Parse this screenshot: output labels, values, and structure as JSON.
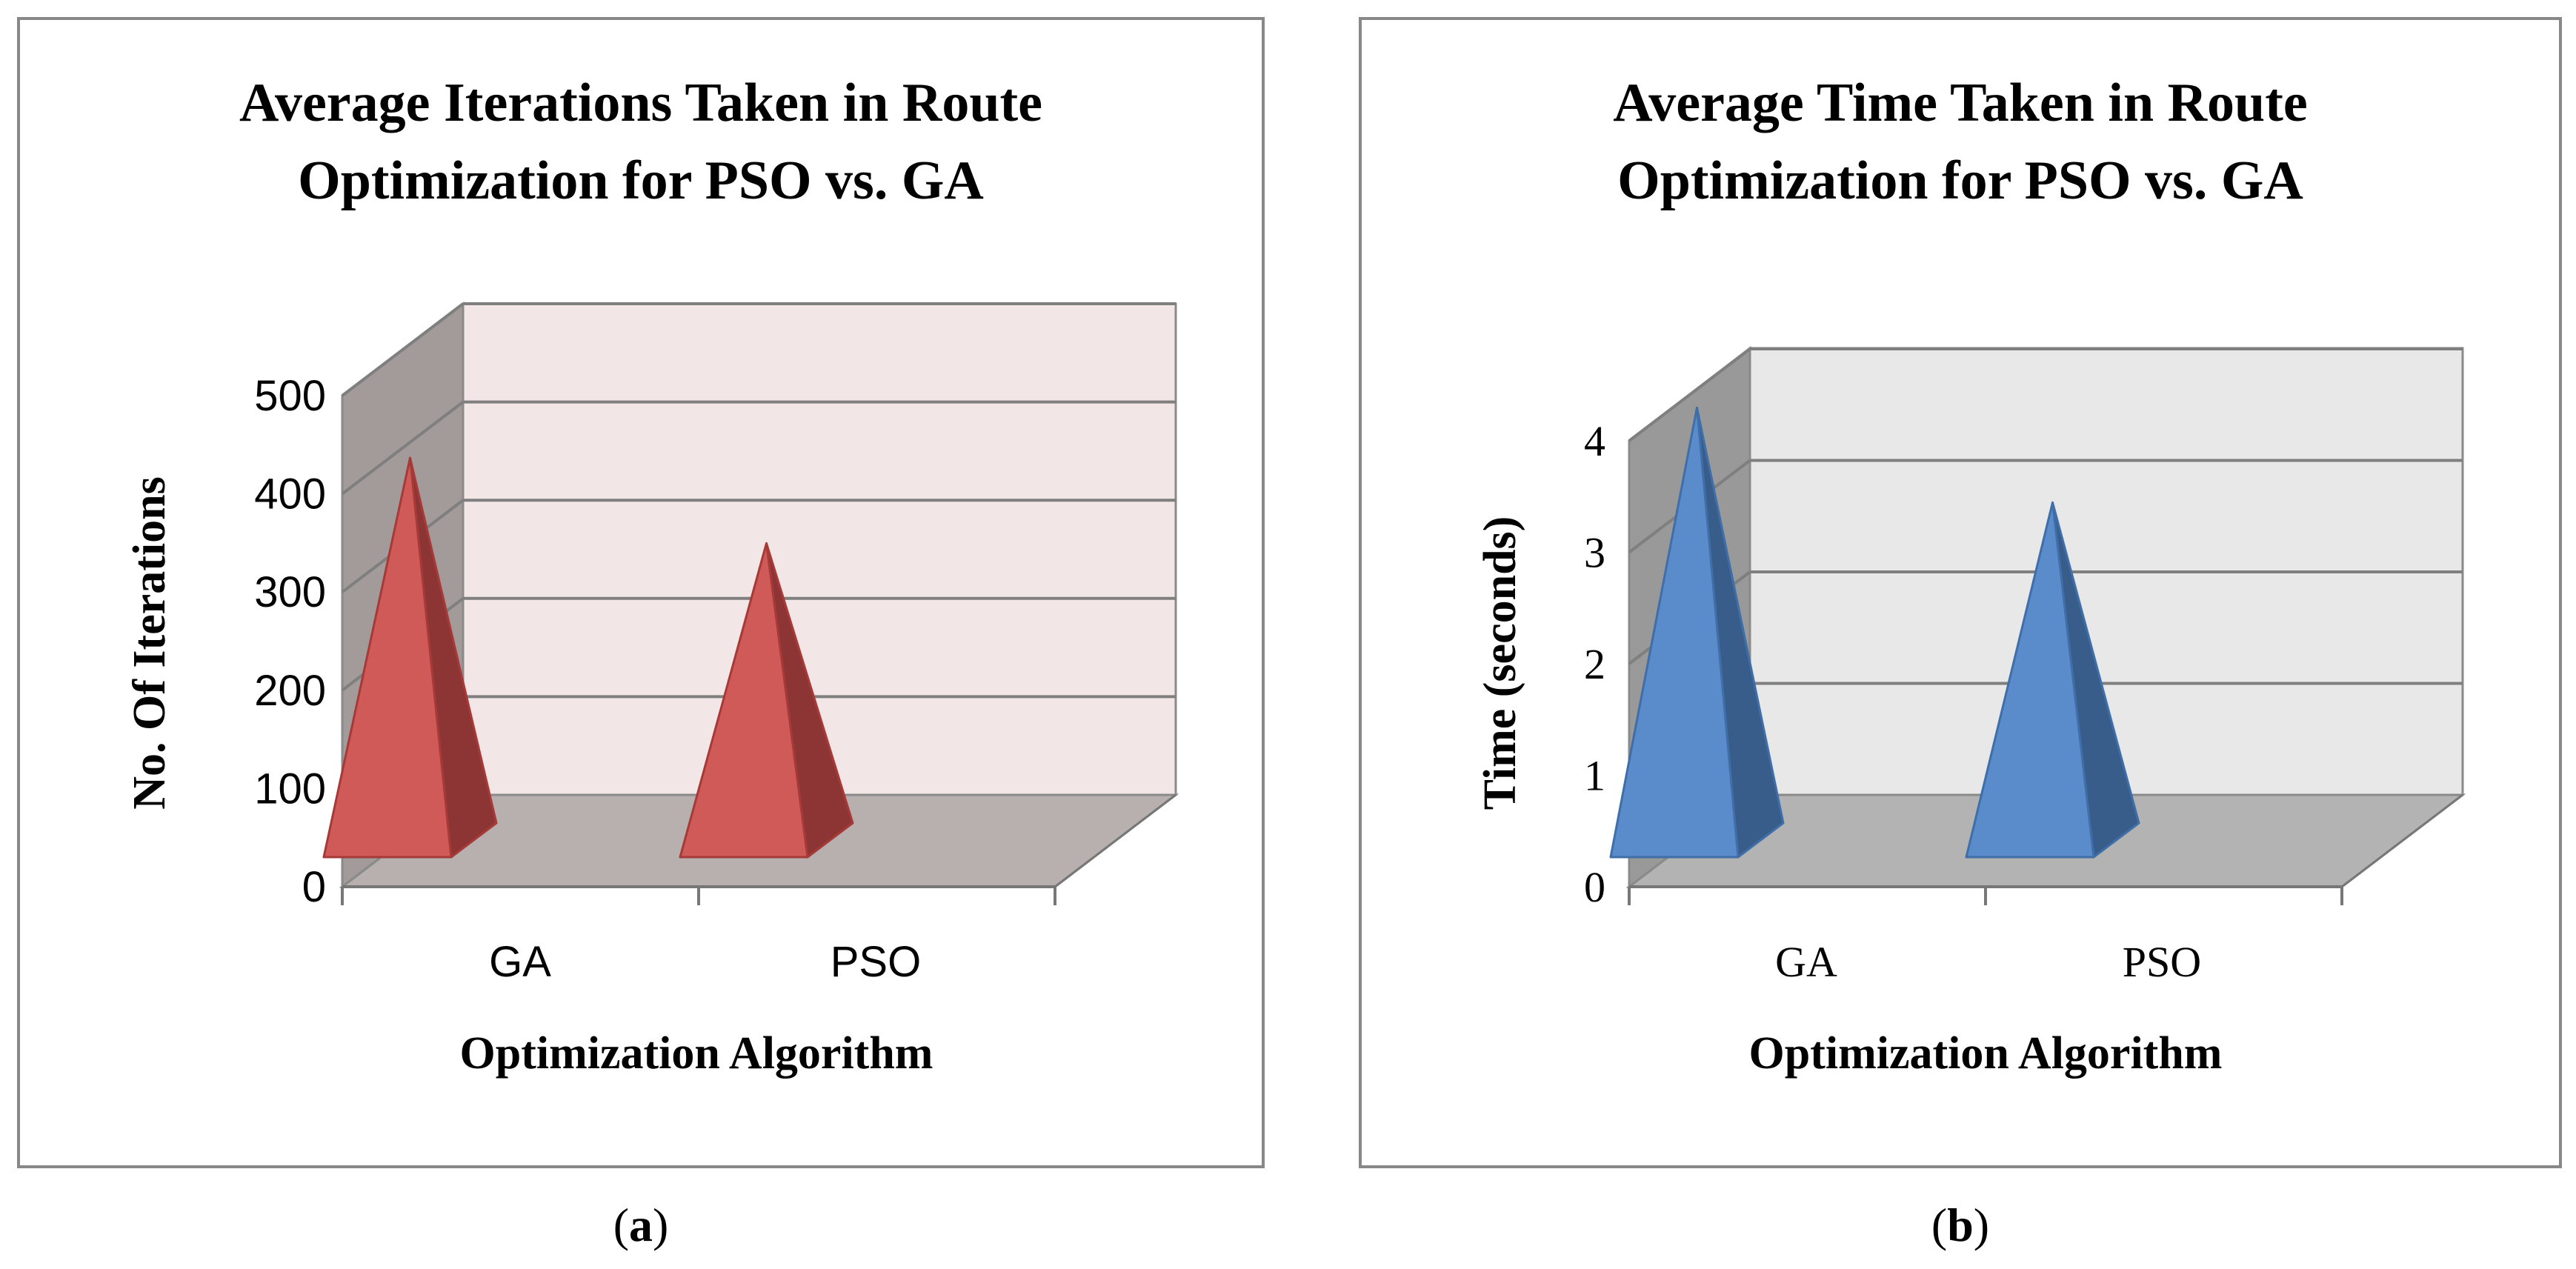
{
  "chart_data": [
    {
      "type": "bar",
      "bar_shape": "pyramid",
      "title_lines": [
        "Average Iterations Taken in Route",
        "Optimization for PSO vs. GA"
      ],
      "xlabel": "Optimization Algorithm",
      "ylabel": "No. Of Iterations",
      "categories": [
        "GA",
        "PSO"
      ],
      "values": [
        420,
        333
      ],
      "ylim": [
        0,
        500
      ],
      "yticks": [
        0,
        100,
        200,
        300,
        400,
        500
      ],
      "grid": true,
      "legend": "none",
      "caption_letter": "a",
      "colors": {
        "bar_front": "#d05a58",
        "bar_side": "#8c3534",
        "bar_edge": "#a63a38",
        "back_wall": "#f3e6e6",
        "side_wall": "#a39a9a",
        "floor": "#b8afaf"
      }
    },
    {
      "type": "bar",
      "bar_shape": "pyramid",
      "title_lines": [
        "Average Time Taken in Route",
        "Optimization for PSO vs. GA"
      ],
      "xlabel": "Optimization Algorithm",
      "ylabel": "Time (seconds)",
      "categories": [
        "GA",
        "PSO"
      ],
      "values": [
        4.15,
        3.3
      ],
      "ylim": [
        0,
        4
      ],
      "yticks": [
        0,
        1,
        2,
        3,
        4
      ],
      "grid": true,
      "legend": "none",
      "caption_letter": "b",
      "colors": {
        "bar_front": "#5a8ccc",
        "bar_side": "#385d8a",
        "bar_edge": "#3f6ea8",
        "back_wall": "#e8e8e8",
        "side_wall": "#999999",
        "floor": "#b3b3b3"
      }
    }
  ]
}
